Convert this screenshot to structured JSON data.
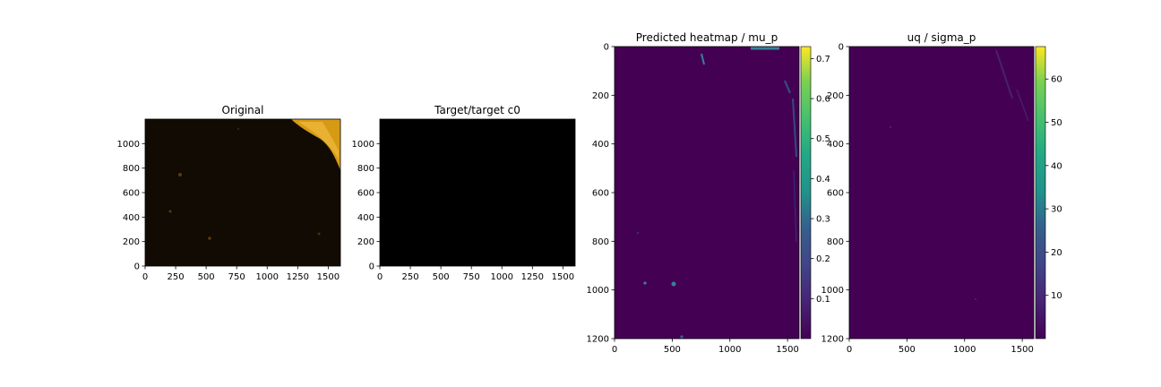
{
  "figure": {
    "background": "#ffffff"
  },
  "chart_data": [
    {
      "type": "heatmap",
      "title": "Original",
      "xlim": [
        0,
        1600
      ],
      "ylim": [
        1200,
        0
      ],
      "x_ticks": [
        0,
        250,
        500,
        750,
        1000,
        1250,
        1500
      ],
      "y_ticks": [
        0,
        200,
        400,
        600,
        800,
        1000
      ],
      "x_tick_labels": [
        "0",
        "250",
        "500",
        "750",
        "1000",
        "1250",
        "1500"
      ],
      "y_tick_labels": [
        "0",
        "200",
        "400",
        "600",
        "800",
        "1000"
      ],
      "image": "dark microscopy image with a bright orange-gold tissue band along the upper-right edge",
      "colors": {
        "background": "#120b04",
        "tissue": "#d79a14",
        "tissue_highlight": "#f3c24a",
        "speck": "#5a3a0a"
      }
    },
    {
      "type": "heatmap",
      "title": "Target/target c0",
      "xlim": [
        0,
        1600
      ],
      "ylim": [
        1200,
        0
      ],
      "x_ticks": [
        0,
        250,
        500,
        750,
        1000,
        1250,
        1500
      ],
      "y_ticks": [
        0,
        200,
        400,
        600,
        800,
        1000
      ],
      "x_tick_labels": [
        "0",
        "250",
        "500",
        "750",
        "1000",
        "1250",
        "1500"
      ],
      "y_tick_labels": [
        "0",
        "200",
        "400",
        "600",
        "800",
        "1000"
      ],
      "image": "uniform black",
      "colors": {
        "background": "#000000"
      }
    },
    {
      "type": "heatmap",
      "title": "Predicted heatmap / mu_p",
      "xlim": [
        0,
        1600
      ],
      "ylim": [
        0,
        1200
      ],
      "x_ticks": [
        0,
        500,
        1000,
        1500
      ],
      "y_ticks": [
        0,
        200,
        400,
        600,
        800,
        1000,
        1200
      ],
      "x_tick_labels": [
        "0",
        "500",
        "1000",
        "1500"
      ],
      "y_tick_labels": [
        "0",
        "200",
        "400",
        "600",
        "800",
        "1000",
        "1200"
      ],
      "colormap": "viridis",
      "colorbar": {
        "min": 0.0,
        "max": 0.73,
        "ticks": [
          0.1,
          0.2,
          0.3,
          0.4,
          0.5,
          0.6,
          0.7
        ],
        "tick_labels": [
          "0.1",
          "0.2",
          "0.3",
          "0.4",
          "0.5",
          "0.6",
          "0.7"
        ]
      },
      "image": "near-zero everywhere with sparse light-blue/teal specks, concentrated along the top and right edges",
      "colors": {
        "background": "#440154",
        "speck": "#35b7b5",
        "speck_dim": "#31688e"
      }
    },
    {
      "type": "heatmap",
      "title": "uq / sigma_p",
      "xlim": [
        0,
        1600
      ],
      "ylim": [
        0,
        1200
      ],
      "x_ticks": [
        0,
        500,
        1000,
        1500
      ],
      "y_ticks": [
        0,
        200,
        400,
        600,
        800,
        1000,
        1200
      ],
      "x_tick_labels": [
        "0",
        "500",
        "1000",
        "1500"
      ],
      "y_tick_labels": [
        "0",
        "200",
        "400",
        "600",
        "800",
        "1000",
        "1200"
      ],
      "colormap": "viridis",
      "colorbar": {
        "min": 0.0,
        "max": 67.5,
        "ticks": [
          10,
          20,
          30,
          40,
          50,
          60
        ],
        "tick_labels": [
          "10",
          "20",
          "30",
          "40",
          "50",
          "60"
        ]
      },
      "image": "near-zero everywhere with faint specks near the upper-right edge",
      "colors": {
        "background": "#440154",
        "speck": "#4a2a6e"
      }
    }
  ]
}
